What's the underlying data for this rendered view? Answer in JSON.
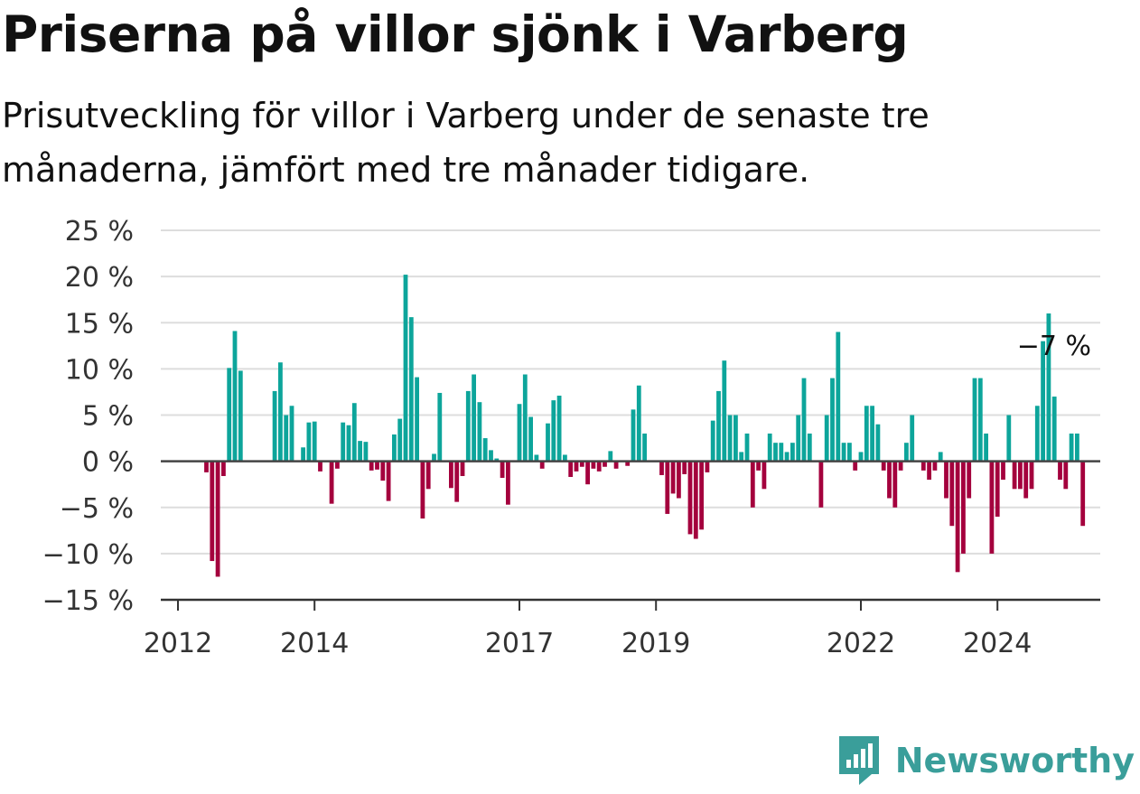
{
  "title": "Priserna på villor sjönk i Varberg",
  "subtitle": "Prisutveckling för villor i Varberg under de senaste tre månaderna, jämfört med tre månader tidigare.",
  "brand": {
    "name": "Newsworthy",
    "icon": "newsworthy-logo-icon"
  },
  "colors": {
    "positive": "#0da59b",
    "negative": "#a4003d",
    "grid": "#dddddd",
    "axis": "#333333"
  },
  "chart_data": {
    "type": "bar",
    "ylim": [
      -15,
      25
    ],
    "yticks": [
      -15,
      -10,
      -5,
      0,
      5,
      10,
      15,
      20,
      25
    ],
    "ytick_labels": [
      "−15 %",
      "−10 %",
      "−5 %",
      "0 %",
      "5 %",
      "10 %",
      "15 %",
      "20 %",
      "25 %"
    ],
    "x_start": "2012-01",
    "xticks": [
      {
        "label": "2012",
        "date": "2012-01"
      },
      {
        "label": "2014",
        "date": "2014-01"
      },
      {
        "label": "2017",
        "date": "2017-01"
      },
      {
        "label": "2019",
        "date": "2019-01"
      },
      {
        "label": "2022",
        "date": "2022-01"
      },
      {
        "label": "2024",
        "date": "2024-01"
      }
    ],
    "grid": true,
    "annotation": {
      "text": "−7 %",
      "date": "2024-10"
    },
    "values": [
      null,
      null,
      null,
      null,
      null,
      -1.2,
      -10.8,
      -12.5,
      -1.6,
      10.1,
      14.1,
      9.8,
      null,
      null,
      null,
      null,
      null,
      7.6,
      10.7,
      5.0,
      6.0,
      null,
      1.5,
      4.2,
      4.3,
      -1.1,
      null,
      -4.6,
      -0.8,
      4.2,
      3.9,
      6.3,
      2.2,
      2.1,
      -1.0,
      -0.9,
      -2.1,
      -4.3,
      2.9,
      4.6,
      20.2,
      15.6,
      9.1,
      -6.2,
      -3.0,
      0.8,
      7.4,
      null,
      -2.9,
      -4.4,
      -1.6,
      7.6,
      9.4,
      6.4,
      2.5,
      1.2,
      0.3,
      -1.8,
      -4.7,
      null,
      6.2,
      9.4,
      4.8,
      0.7,
      -0.8,
      4.1,
      6.6,
      7.1,
      0.7,
      -1.7,
      -1.1,
      -0.6,
      -2.5,
      -0.8,
      -1.1,
      -0.6,
      1.1,
      -0.8,
      null,
      -0.5,
      5.6,
      8.2,
      3.0,
      null,
      null,
      -1.5,
      -5.7,
      -3.5,
      -4.0,
      -1.4,
      -7.9,
      -8.4,
      -7.4,
      -1.2,
      4.4,
      7.6,
      10.9,
      5.0,
      5.0,
      1.0,
      3.0,
      -5.0,
      -1.0,
      -3.0,
      3.0,
      2.0,
      2.0,
      1.0,
      2.0,
      5.0,
      9.0,
      3.0,
      null,
      -5.0,
      5.0,
      9.0,
      14.0,
      2.0,
      2.0,
      -1.0,
      1.0,
      6.0,
      6.0,
      4.0,
      -1.0,
      -4.0,
      -5.0,
      -1.0,
      2.0,
      5.0,
      null,
      -1.0,
      -2.0,
      -1.0,
      1.0,
      -4.0,
      -7.0,
      -12.0,
      -10.0,
      -4.0,
      9.0,
      9.0,
      3.0,
      -10.0,
      -6.0,
      -2.0,
      5.0,
      -3.0,
      -3.0,
      -4.0,
      -3.0,
      6.0,
      13.0,
      16.0,
      7.0,
      -2.0,
      -3.0,
      3.0,
      3.0,
      -7.0
    ]
  }
}
